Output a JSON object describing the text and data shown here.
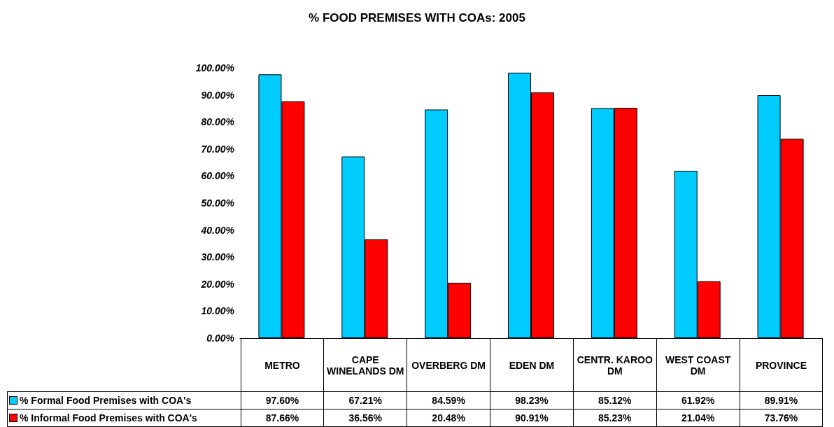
{
  "chart_data": {
    "type": "bar",
    "title": "% FOOD PREMISES WITH COAs: 2005",
    "categories": [
      "METRO",
      "CAPE WINELANDS DM",
      "OVERBERG DM",
      "EDEN DM",
      "CENTR. KAROO DM",
      "WEST COAST DM",
      "PROVINCE"
    ],
    "series": [
      {
        "name": "% Formal Food Premises with COA's",
        "color": "#00ccff",
        "values": [
          97.6,
          67.21,
          84.59,
          98.23,
          85.12,
          61.92,
          89.91
        ],
        "value_labels": [
          "97.60%",
          "67.21%",
          "84.59%",
          "98.23%",
          "85.12%",
          "61.92%",
          "89.91%"
        ]
      },
      {
        "name": "% Informal Food Premises with COA's",
        "color": "#ff0000",
        "values": [
          87.66,
          36.56,
          20.48,
          90.91,
          85.23,
          21.04,
          73.76
        ],
        "value_labels": [
          "87.66%",
          "36.56%",
          "20.48%",
          "90.91%",
          "85.23%",
          "21.04%",
          "73.76%"
        ]
      }
    ],
    "ylim": [
      0,
      100
    ],
    "yticks": [
      {
        "value": 0,
        "label": "0.00%"
      },
      {
        "value": 10,
        "label": "10.00%"
      },
      {
        "value": 20,
        "label": "20.00%"
      },
      {
        "value": 30,
        "label": "30.00%"
      },
      {
        "value": 40,
        "label": "40.00%"
      },
      {
        "value": 50,
        "label": "50.00%"
      },
      {
        "value": 60,
        "label": "60.00%"
      },
      {
        "value": 70,
        "label": "70.00%"
      },
      {
        "value": 80,
        "label": "80.00%"
      },
      {
        "value": 90,
        "label": "90.00%"
      },
      {
        "value": 100,
        "label": "100.00%"
      }
    ],
    "legend": "bottom left"
  }
}
